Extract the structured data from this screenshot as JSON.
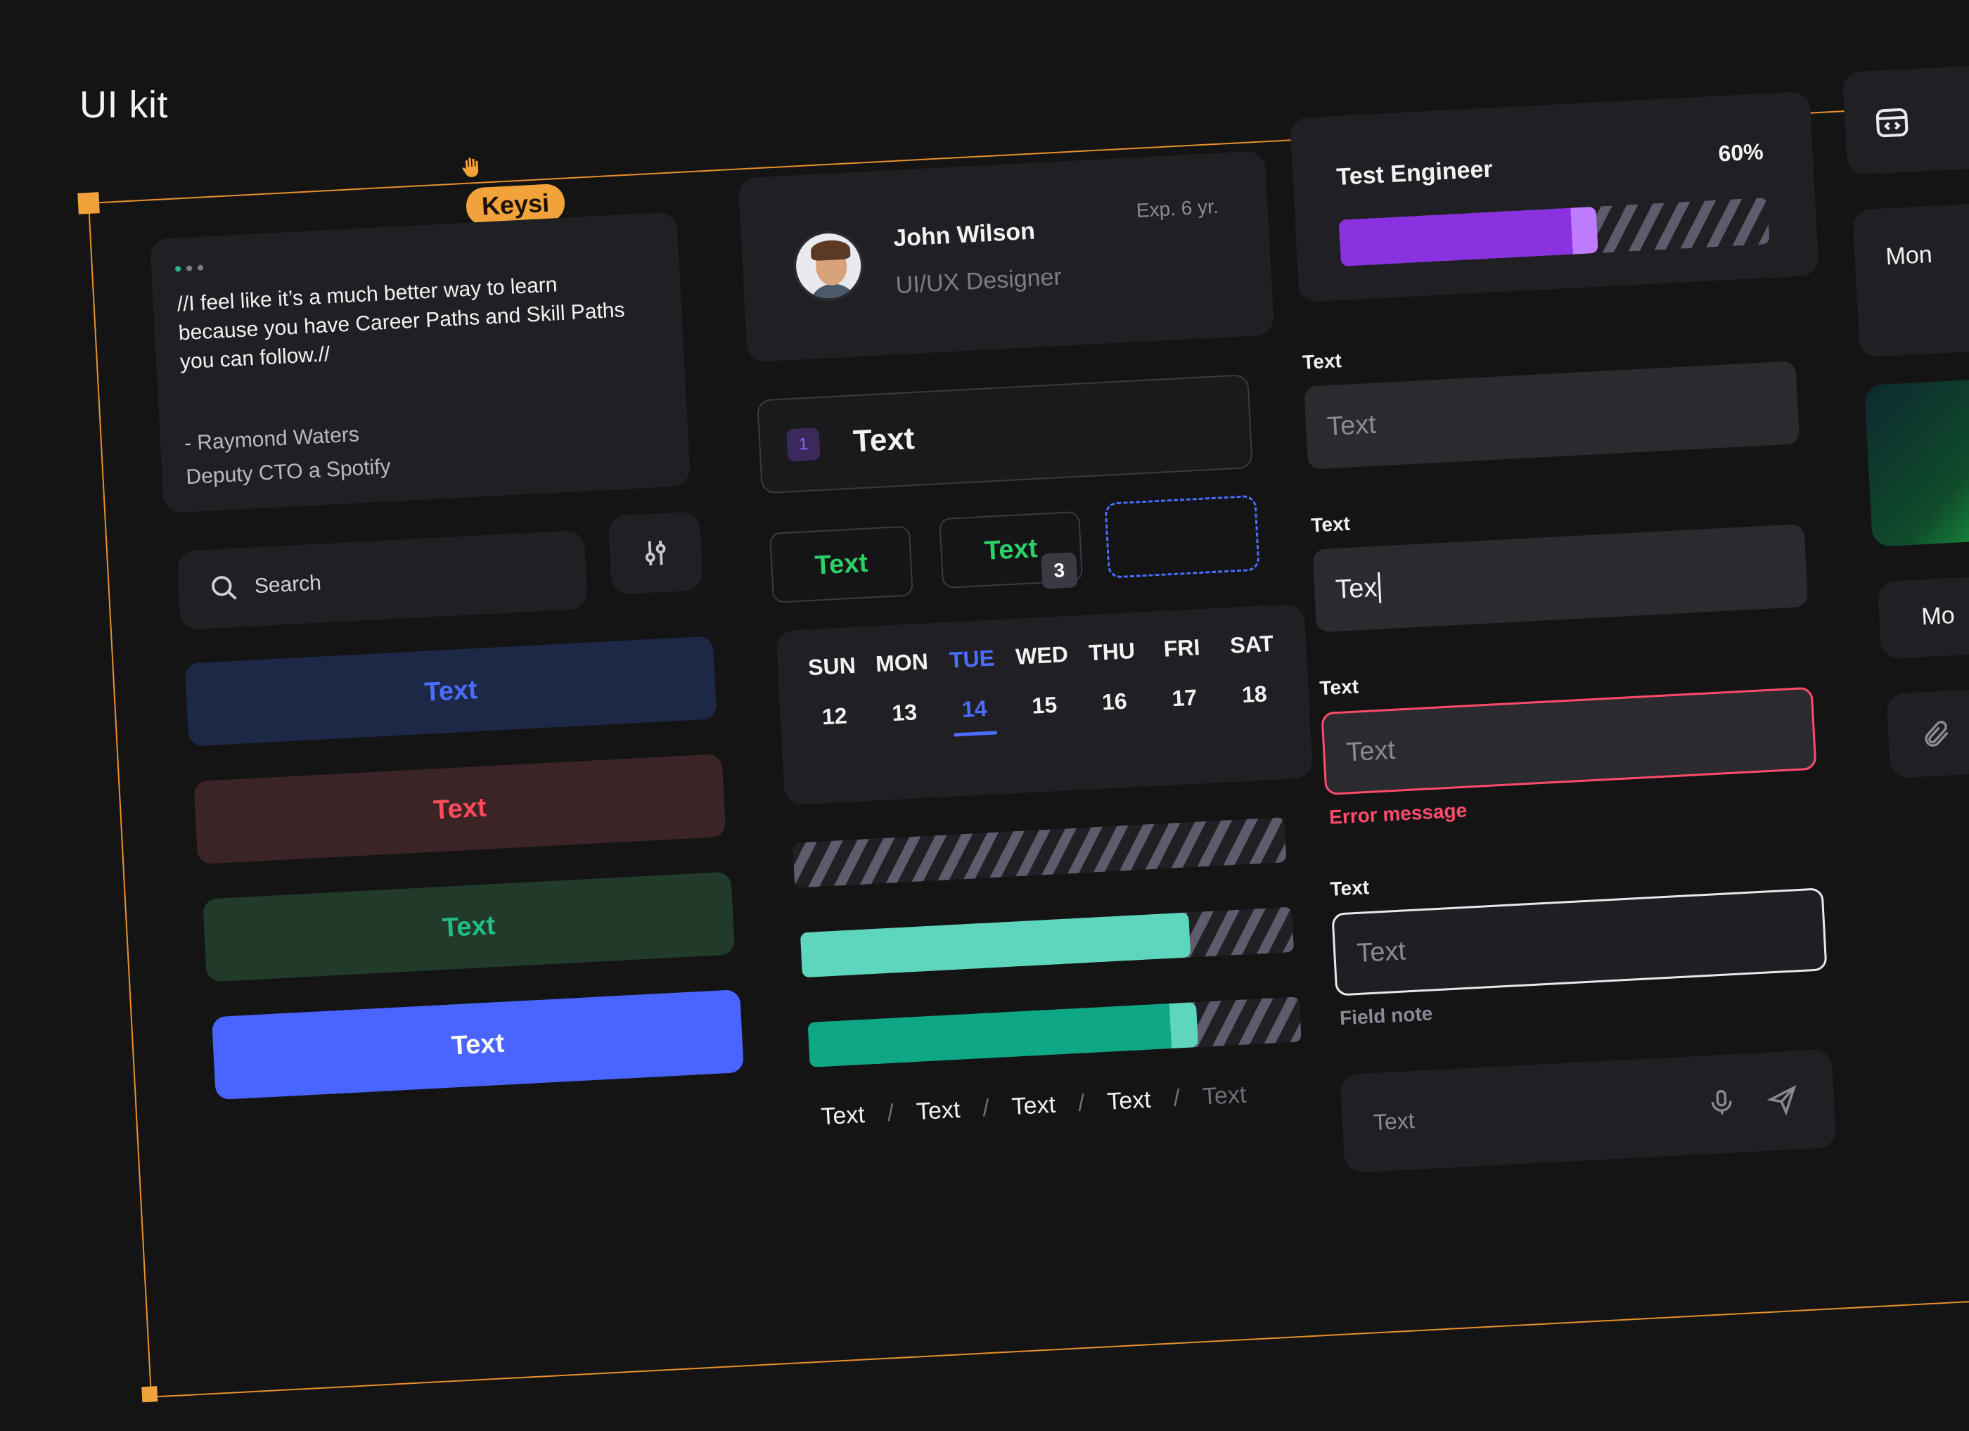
{
  "page": {
    "title": "UI kit"
  },
  "collaborator": {
    "name": "Keysi"
  },
  "testimonial": {
    "quote": "//I feel like it’s a much better way to learn because you have Career Paths and Skill Paths you can follow.//",
    "author": "- Raymond Waters",
    "position": "Deputy CTO a Spotify"
  },
  "search": {
    "placeholder": "Search"
  },
  "buttons": [
    "Text",
    "Text",
    "Text",
    "Text"
  ],
  "profile": {
    "name": "John Wilson",
    "role": "UI/UX Designer",
    "experience": "Exp. 6 yr."
  },
  "numbered_field": {
    "number": "1",
    "text": "Text"
  },
  "chips": {
    "first": "Text",
    "second": "Text",
    "count": "3"
  },
  "calendar": {
    "days": [
      "SUN",
      "MON",
      "TUE",
      "WED",
      "THU",
      "FRI",
      "SAT"
    ],
    "dates": [
      "12",
      "13",
      "14",
      "15",
      "16",
      "17",
      "18"
    ],
    "active_index": 2
  },
  "progress": {
    "empty": 0,
    "teal": 0.79,
    "green": 0.79
  },
  "breadcrumbs": [
    "Text",
    "Text",
    "Text",
    "Text",
    "Text"
  ],
  "breadcrumb_separator": "/",
  "job": {
    "title": "Test Engineer",
    "percent_label": "60%",
    "progress": 0.6
  },
  "fields": {
    "f1": {
      "label": "Text",
      "placeholder": "Text"
    },
    "f2": {
      "label": "Text",
      "value": "Tex"
    },
    "f3": {
      "label": "Text",
      "placeholder": "Text",
      "error": "Error message"
    },
    "f4": {
      "label": "Text",
      "placeholder": "Text",
      "note": "Field note"
    }
  },
  "chat": {
    "placeholder": "Text"
  },
  "side": {
    "item1": "Mon",
    "item2": "Mo"
  },
  "colors": {
    "accent": "#4a64ff",
    "danger": "#ff4b6b",
    "success": "#1fbf86",
    "purple": "#8a32e0",
    "selection": "#e8902c"
  }
}
